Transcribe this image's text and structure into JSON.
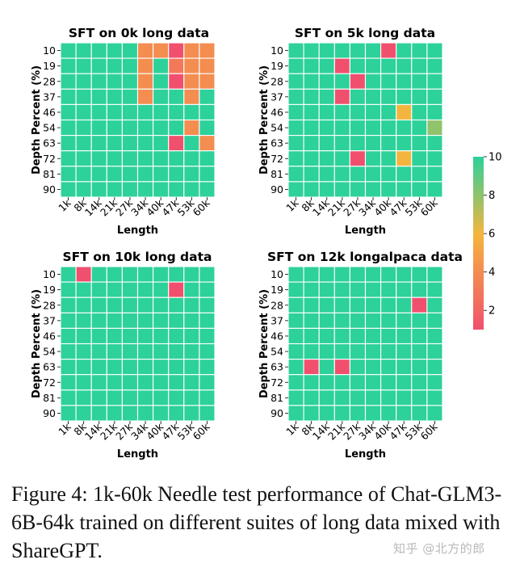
{
  "chart_data": [
    {
      "type": "heatmap",
      "title": "SFT on 0k long data",
      "xlabel": "Length",
      "ylabel": "Depth Percent (%)",
      "x": [
        "1k",
        "8k",
        "14k",
        "21k",
        "27k",
        "34k",
        "40k",
        "47k",
        "53k",
        "60k"
      ],
      "y": [
        "10",
        "19",
        "28",
        "37",
        "46",
        "54",
        "63",
        "72",
        "81",
        "90"
      ],
      "default_value": 10,
      "cells": [
        {
          "x": "34k",
          "y": "10",
          "value": 4
        },
        {
          "x": "40k",
          "y": "10",
          "value": 4
        },
        {
          "x": "47k",
          "y": "10",
          "value": 1
        },
        {
          "x": "53k",
          "y": "10",
          "value": 4
        },
        {
          "x": "60k",
          "y": "10",
          "value": 4
        },
        {
          "x": "34k",
          "y": "19",
          "value": 4
        },
        {
          "x": "47k",
          "y": "19",
          "value": 3
        },
        {
          "x": "53k",
          "y": "19",
          "value": 4
        },
        {
          "x": "60k",
          "y": "19",
          "value": 4
        },
        {
          "x": "34k",
          "y": "28",
          "value": 4
        },
        {
          "x": "47k",
          "y": "28",
          "value": 1
        },
        {
          "x": "53k",
          "y": "28",
          "value": 4
        },
        {
          "x": "60k",
          "y": "28",
          "value": 4
        },
        {
          "x": "34k",
          "y": "37",
          "value": 4
        },
        {
          "x": "53k",
          "y": "37",
          "value": 4
        },
        {
          "x": "53k",
          "y": "54",
          "value": 4
        },
        {
          "x": "47k",
          "y": "63",
          "value": 1
        },
        {
          "x": "60k",
          "y": "63",
          "value": 4
        }
      ]
    },
    {
      "type": "heatmap",
      "title": "SFT on 5k long data",
      "xlabel": "Length",
      "ylabel": "Depth Percent (%)",
      "x": [
        "1k",
        "8k",
        "14k",
        "21k",
        "27k",
        "34k",
        "40k",
        "47k",
        "53k",
        "60k"
      ],
      "y": [
        "10",
        "19",
        "28",
        "37",
        "46",
        "54",
        "63",
        "72",
        "81",
        "90"
      ],
      "default_value": 10,
      "cells": [
        {
          "x": "40k",
          "y": "10",
          "value": 1
        },
        {
          "x": "21k",
          "y": "19",
          "value": 1
        },
        {
          "x": "27k",
          "y": "28",
          "value": 1
        },
        {
          "x": "21k",
          "y": "37",
          "value": 1
        },
        {
          "x": "47k",
          "y": "46",
          "value": 6
        },
        {
          "x": "60k",
          "y": "54",
          "value": 8
        },
        {
          "x": "27k",
          "y": "72",
          "value": 1
        },
        {
          "x": "47k",
          "y": "72",
          "value": 6
        }
      ]
    },
    {
      "type": "heatmap",
      "title": "SFT on 10k long data",
      "xlabel": "Length",
      "ylabel": "Depth Percent (%)",
      "x": [
        "1k",
        "8k",
        "14k",
        "21k",
        "27k",
        "34k",
        "40k",
        "47k",
        "53k",
        "60k"
      ],
      "y": [
        "10",
        "19",
        "28",
        "37",
        "46",
        "54",
        "63",
        "72",
        "81",
        "90"
      ],
      "default_value": 10,
      "cells": [
        {
          "x": "8k",
          "y": "10",
          "value": 1
        },
        {
          "x": "47k",
          "y": "19",
          "value": 1
        }
      ]
    },
    {
      "type": "heatmap",
      "title": "SFT on 12k longalpaca data",
      "xlabel": "Length",
      "ylabel": "Depth Percent (%)",
      "x": [
        "1k",
        "8k",
        "14k",
        "21k",
        "27k",
        "34k",
        "40k",
        "47k",
        "53k",
        "60k"
      ],
      "y": [
        "10",
        "19",
        "28",
        "37",
        "46",
        "54",
        "63",
        "72",
        "81",
        "90"
      ],
      "default_value": 10,
      "cells": [
        {
          "x": "53k",
          "y": "28",
          "value": 1
        },
        {
          "x": "8k",
          "y": "63",
          "value": 1
        },
        {
          "x": "21k",
          "y": "63",
          "value": 1
        }
      ]
    }
  ],
  "colorbar": {
    "min": 1,
    "max": 10,
    "ticks": [
      "10",
      "8",
      "6",
      "4",
      "2"
    ],
    "colors": {
      "low": "#f0506e",
      "mid": "#f5b53c",
      "high": "#2dd19a"
    }
  },
  "caption": "Figure 4:  1k-60k Needle test performance of Chat-GLM3-6B-64k trained on different suites of long data mixed with ShareGPT.",
  "watermark": "知乎 @北方的郎"
}
